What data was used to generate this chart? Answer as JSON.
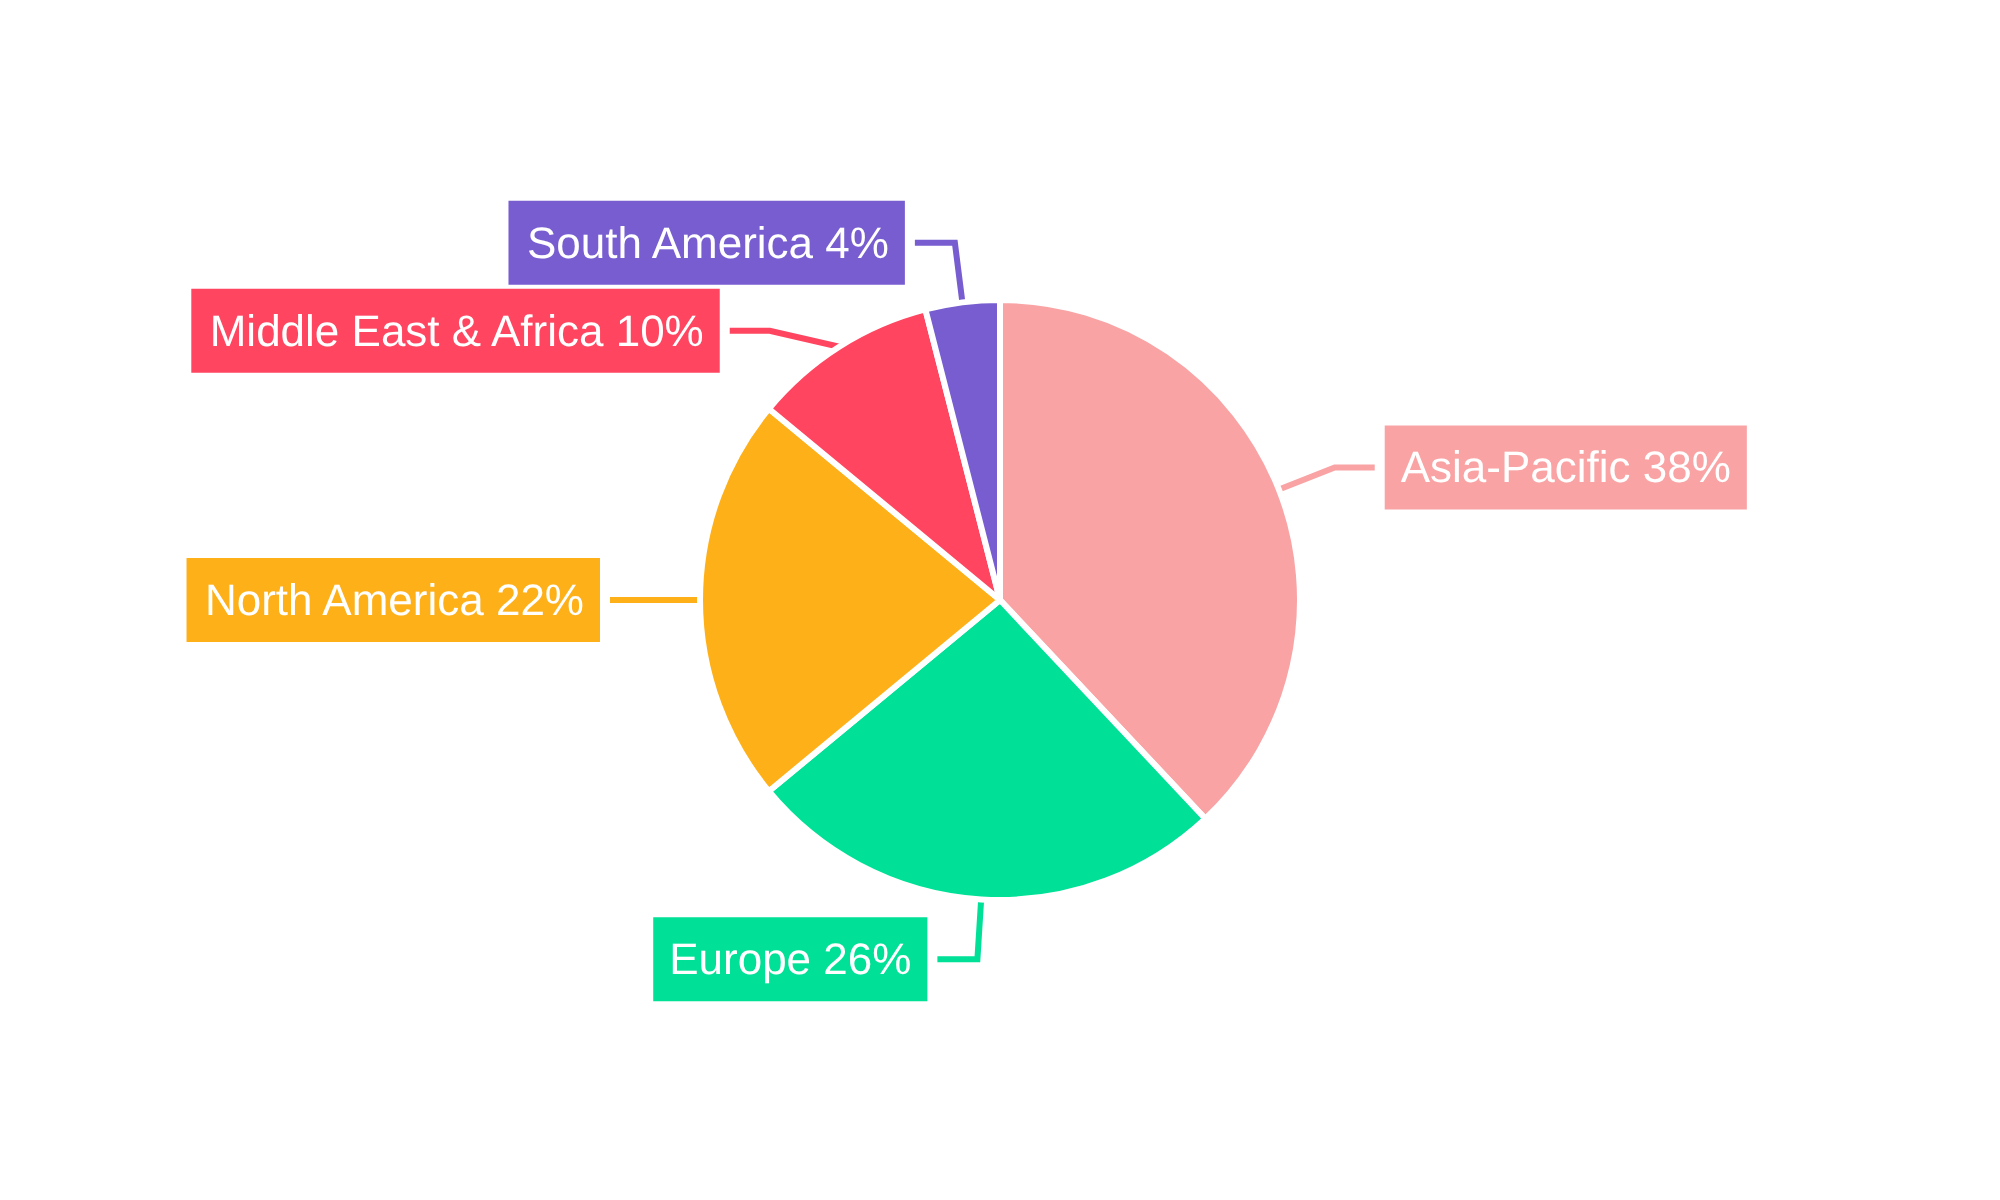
{
  "chart_data": {
    "type": "pie",
    "categories": [
      "Asia-Pacific",
      "Europe",
      "North America",
      "Middle East & Africa",
      "South America"
    ],
    "values": [
      38,
      26,
      22,
      10,
      4
    ],
    "colors": [
      "#f9a3a4",
      "#00e096",
      "#feb019",
      "#ff4560",
      "#775dd0"
    ],
    "value_labels": [
      "38%",
      "26%",
      "22%",
      "10%",
      "4%"
    ],
    "legend": false
  }
}
